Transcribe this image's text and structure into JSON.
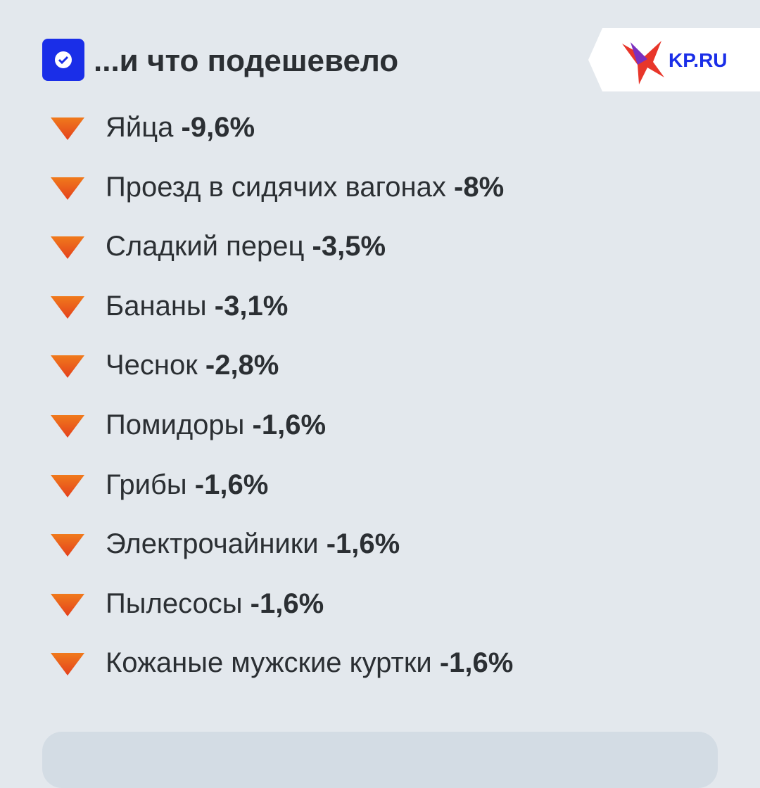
{
  "header": {
    "title": "...и что подешевело",
    "logo": "KP.RU"
  },
  "items": [
    {
      "name": "Яйца",
      "value": "-9,6%"
    },
    {
      "name": "Проезд в сидячих вагонах",
      "value": "-8%"
    },
    {
      "name": "Сладкий перец",
      "value": "-3,5%"
    },
    {
      "name": "Бананы",
      "value": "-3,1%"
    },
    {
      "name": "Чеснок",
      "value": "-2,8%"
    },
    {
      "name": "Помидоры",
      "value": "-1,6%"
    },
    {
      "name": "Грибы",
      "value": "-1,6%"
    },
    {
      "name": "Электрочайники",
      "value": "-1,6%"
    },
    {
      "name": "Пылесосы",
      "value": "-1,6%"
    },
    {
      "name": "Кожаные мужские куртки",
      "value": "-1,6%"
    }
  ]
}
